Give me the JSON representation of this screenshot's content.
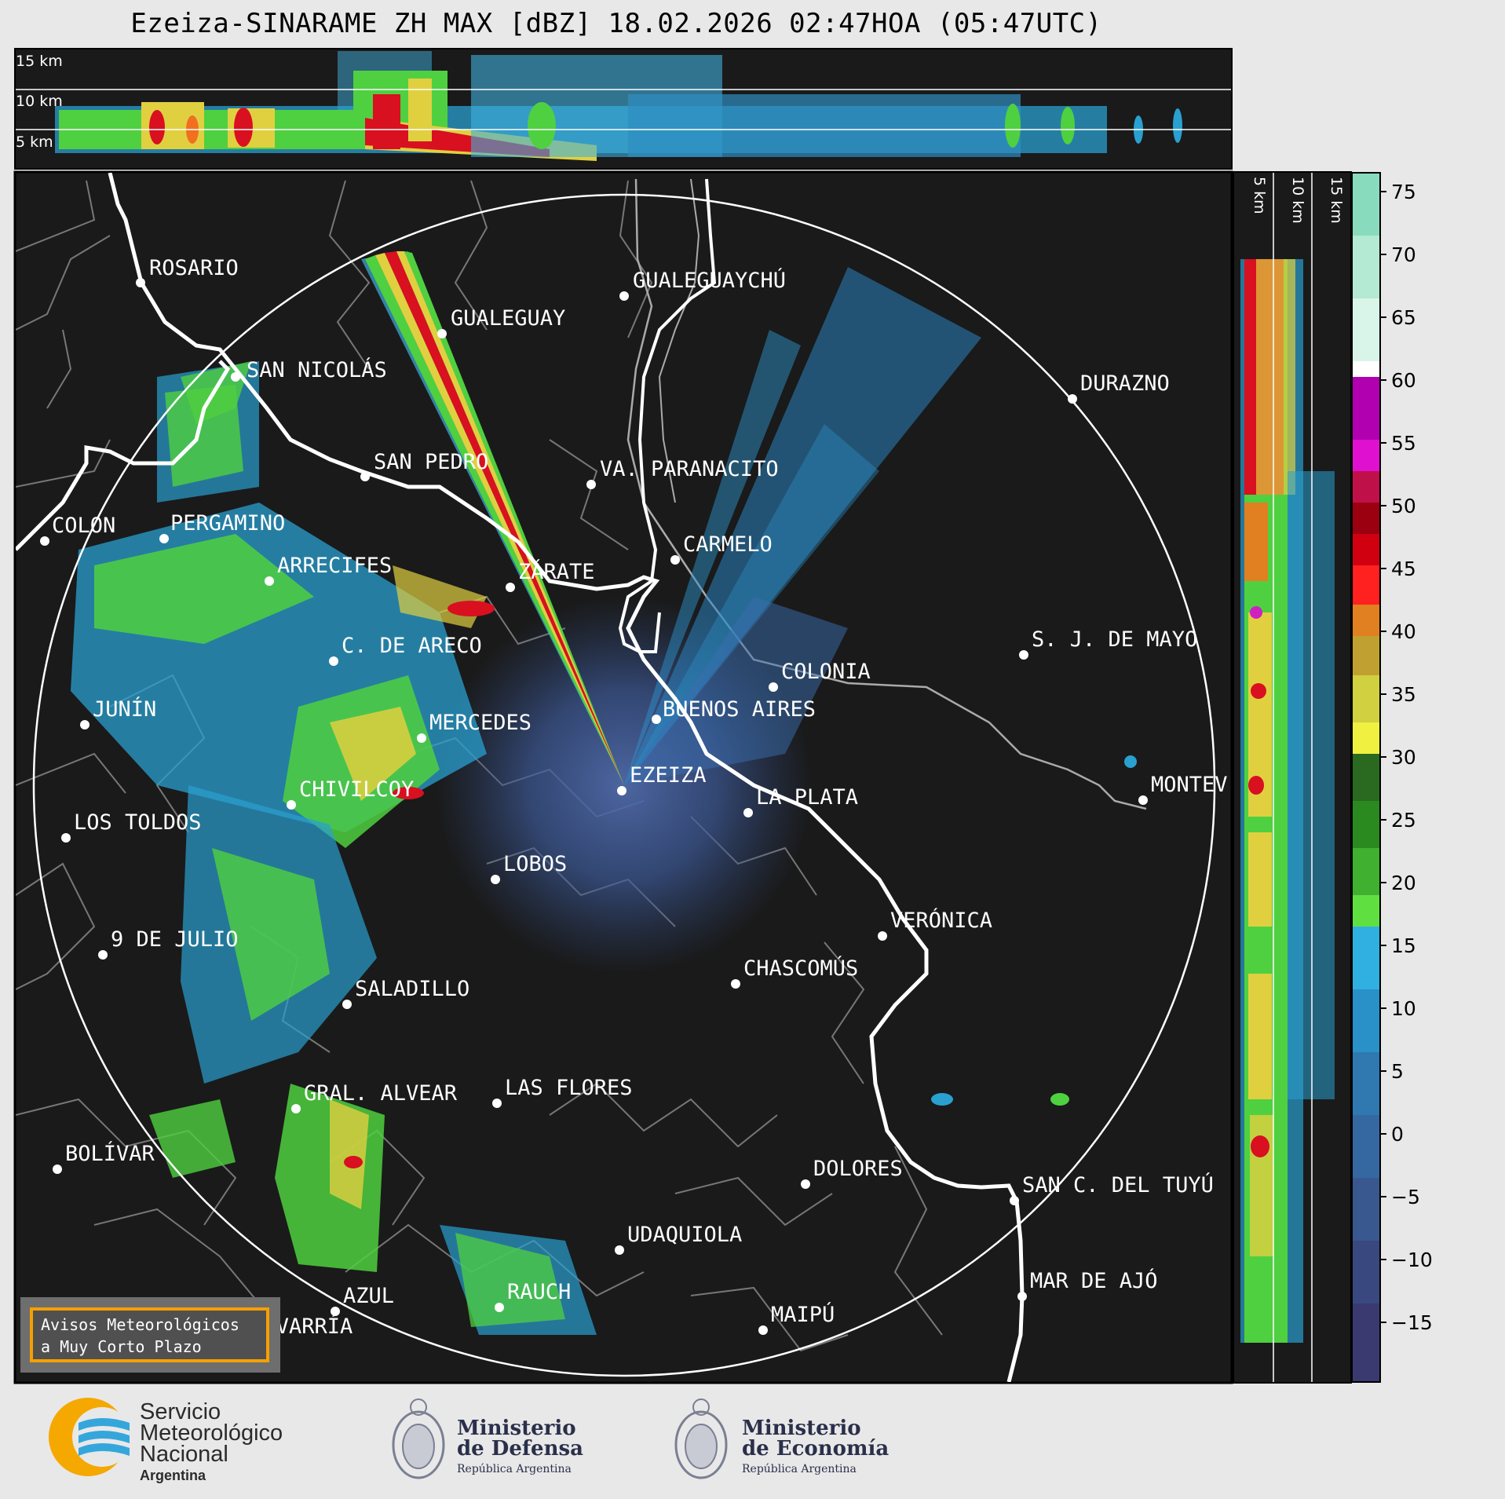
{
  "title": "Ezeiza-SINARAME ZH MAX [dBZ] 18.02.2026 02:47HOA (05:47UTC)",
  "top_panel_heights": [
    "15 km",
    "10 km",
    "5 km"
  ],
  "side_panel_heights": [
    "5 km",
    "10 km",
    "15 km"
  ],
  "colorbar": {
    "unit": "dBZ",
    "ticks": [
      "75",
      "70",
      "65",
      "60",
      "55",
      "50",
      "45",
      "40",
      "35",
      "30",
      "25",
      "20",
      "15",
      "10",
      "5",
      "0",
      "−5",
      "−10",
      "−15"
    ]
  },
  "cities": [
    {
      "name": "ROSARIO"
    },
    {
      "name": "GUALEGUAYCHÚ"
    },
    {
      "name": "GUALEGUAY"
    },
    {
      "name": "SAN NICOLÁS"
    },
    {
      "name": "DURAZNO"
    },
    {
      "name": "SAN PEDRO"
    },
    {
      "name": "VA. PARANACITO"
    },
    {
      "name": "COLON"
    },
    {
      "name": "PERGAMINO"
    },
    {
      "name": "CARMELO"
    },
    {
      "name": "ARRECIFES"
    },
    {
      "name": "ZÁRATE"
    },
    {
      "name": "S. J. DE MAYO"
    },
    {
      "name": "C. DE ARECO"
    },
    {
      "name": "COLONIA"
    },
    {
      "name": "JUNÍN"
    },
    {
      "name": "BUENOS AIRES"
    },
    {
      "name": "MERCEDES"
    },
    {
      "name": "MONTEV"
    },
    {
      "name": "EZEIZA"
    },
    {
      "name": "CHIVILCOY"
    },
    {
      "name": "LA PLATA"
    },
    {
      "name": "LOS TOLDOS"
    },
    {
      "name": "LOBOS"
    },
    {
      "name": "VERÓNICA"
    },
    {
      "name": "9 DE JULIO"
    },
    {
      "name": "CHASCOMÚS"
    },
    {
      "name": "SALADILLO"
    },
    {
      "name": "GRAL. ALVEAR"
    },
    {
      "name": "LAS FLORES"
    },
    {
      "name": "BOLÍVAR"
    },
    {
      "name": "DOLORES"
    },
    {
      "name": "SAN C. DEL TUYÚ"
    },
    {
      "name": "UDAQUIOLA"
    },
    {
      "name": "MAR DE AJÓ"
    },
    {
      "name": "AZUL"
    },
    {
      "name": "RAUCH"
    },
    {
      "name": "OLAVARRÍA"
    },
    {
      "name": "MAIPÚ"
    }
  ],
  "avisos": {
    "line1": "Avisos Meteorológicos",
    "line2": "a Muy Corto Plazo"
  },
  "logos": {
    "smn": {
      "line1": "Servicio",
      "line2": "Meteorológico",
      "line3": "Nacional",
      "line4": "Argentina"
    },
    "defensa": {
      "line1": "Ministerio",
      "line2": "de Defensa",
      "line3": "República Argentina"
    },
    "economia": {
      "line1": "Ministerio",
      "line2": "de Economía",
      "line3": "República Argentina"
    }
  },
  "colors": {
    "background": "#1a1a1a",
    "coast": "#ffffff",
    "boundaries": "#8a8a8a",
    "accent": "#f5a000"
  }
}
